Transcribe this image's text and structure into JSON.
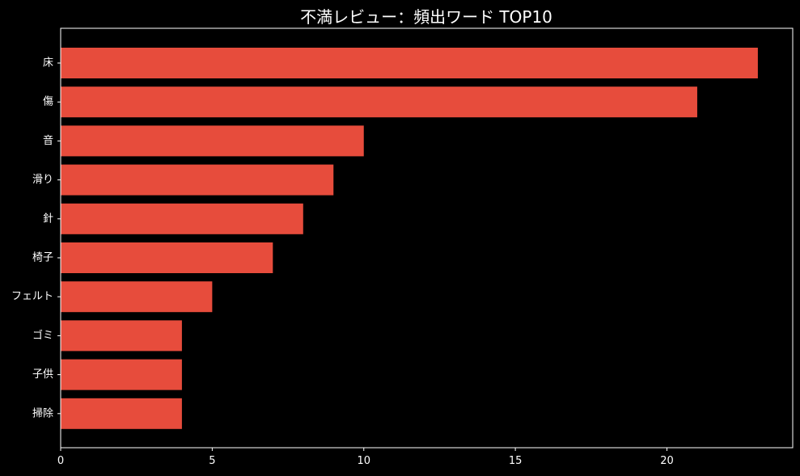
{
  "chart_data": {
    "type": "bar",
    "orientation": "horizontal",
    "title": "不満レビュー：頻出ワード TOP10",
    "xlabel": "",
    "ylabel": "",
    "categories": [
      "床",
      "傷",
      "音",
      "滑り",
      "針",
      "椅子",
      "フェルト",
      "ゴミ",
      "子供",
      "掃除"
    ],
    "values": [
      23,
      21,
      10,
      9,
      8,
      7,
      5,
      4,
      4,
      4
    ],
    "xlim": [
      0,
      24.15
    ],
    "x_ticks": [
      0,
      5,
      10,
      15,
      20
    ],
    "grid": false,
    "legend": "none",
    "colors": {
      "background": "#000000",
      "bar": "#e74c3c",
      "axis": "#ffffff",
      "text": "#ffffff"
    }
  }
}
